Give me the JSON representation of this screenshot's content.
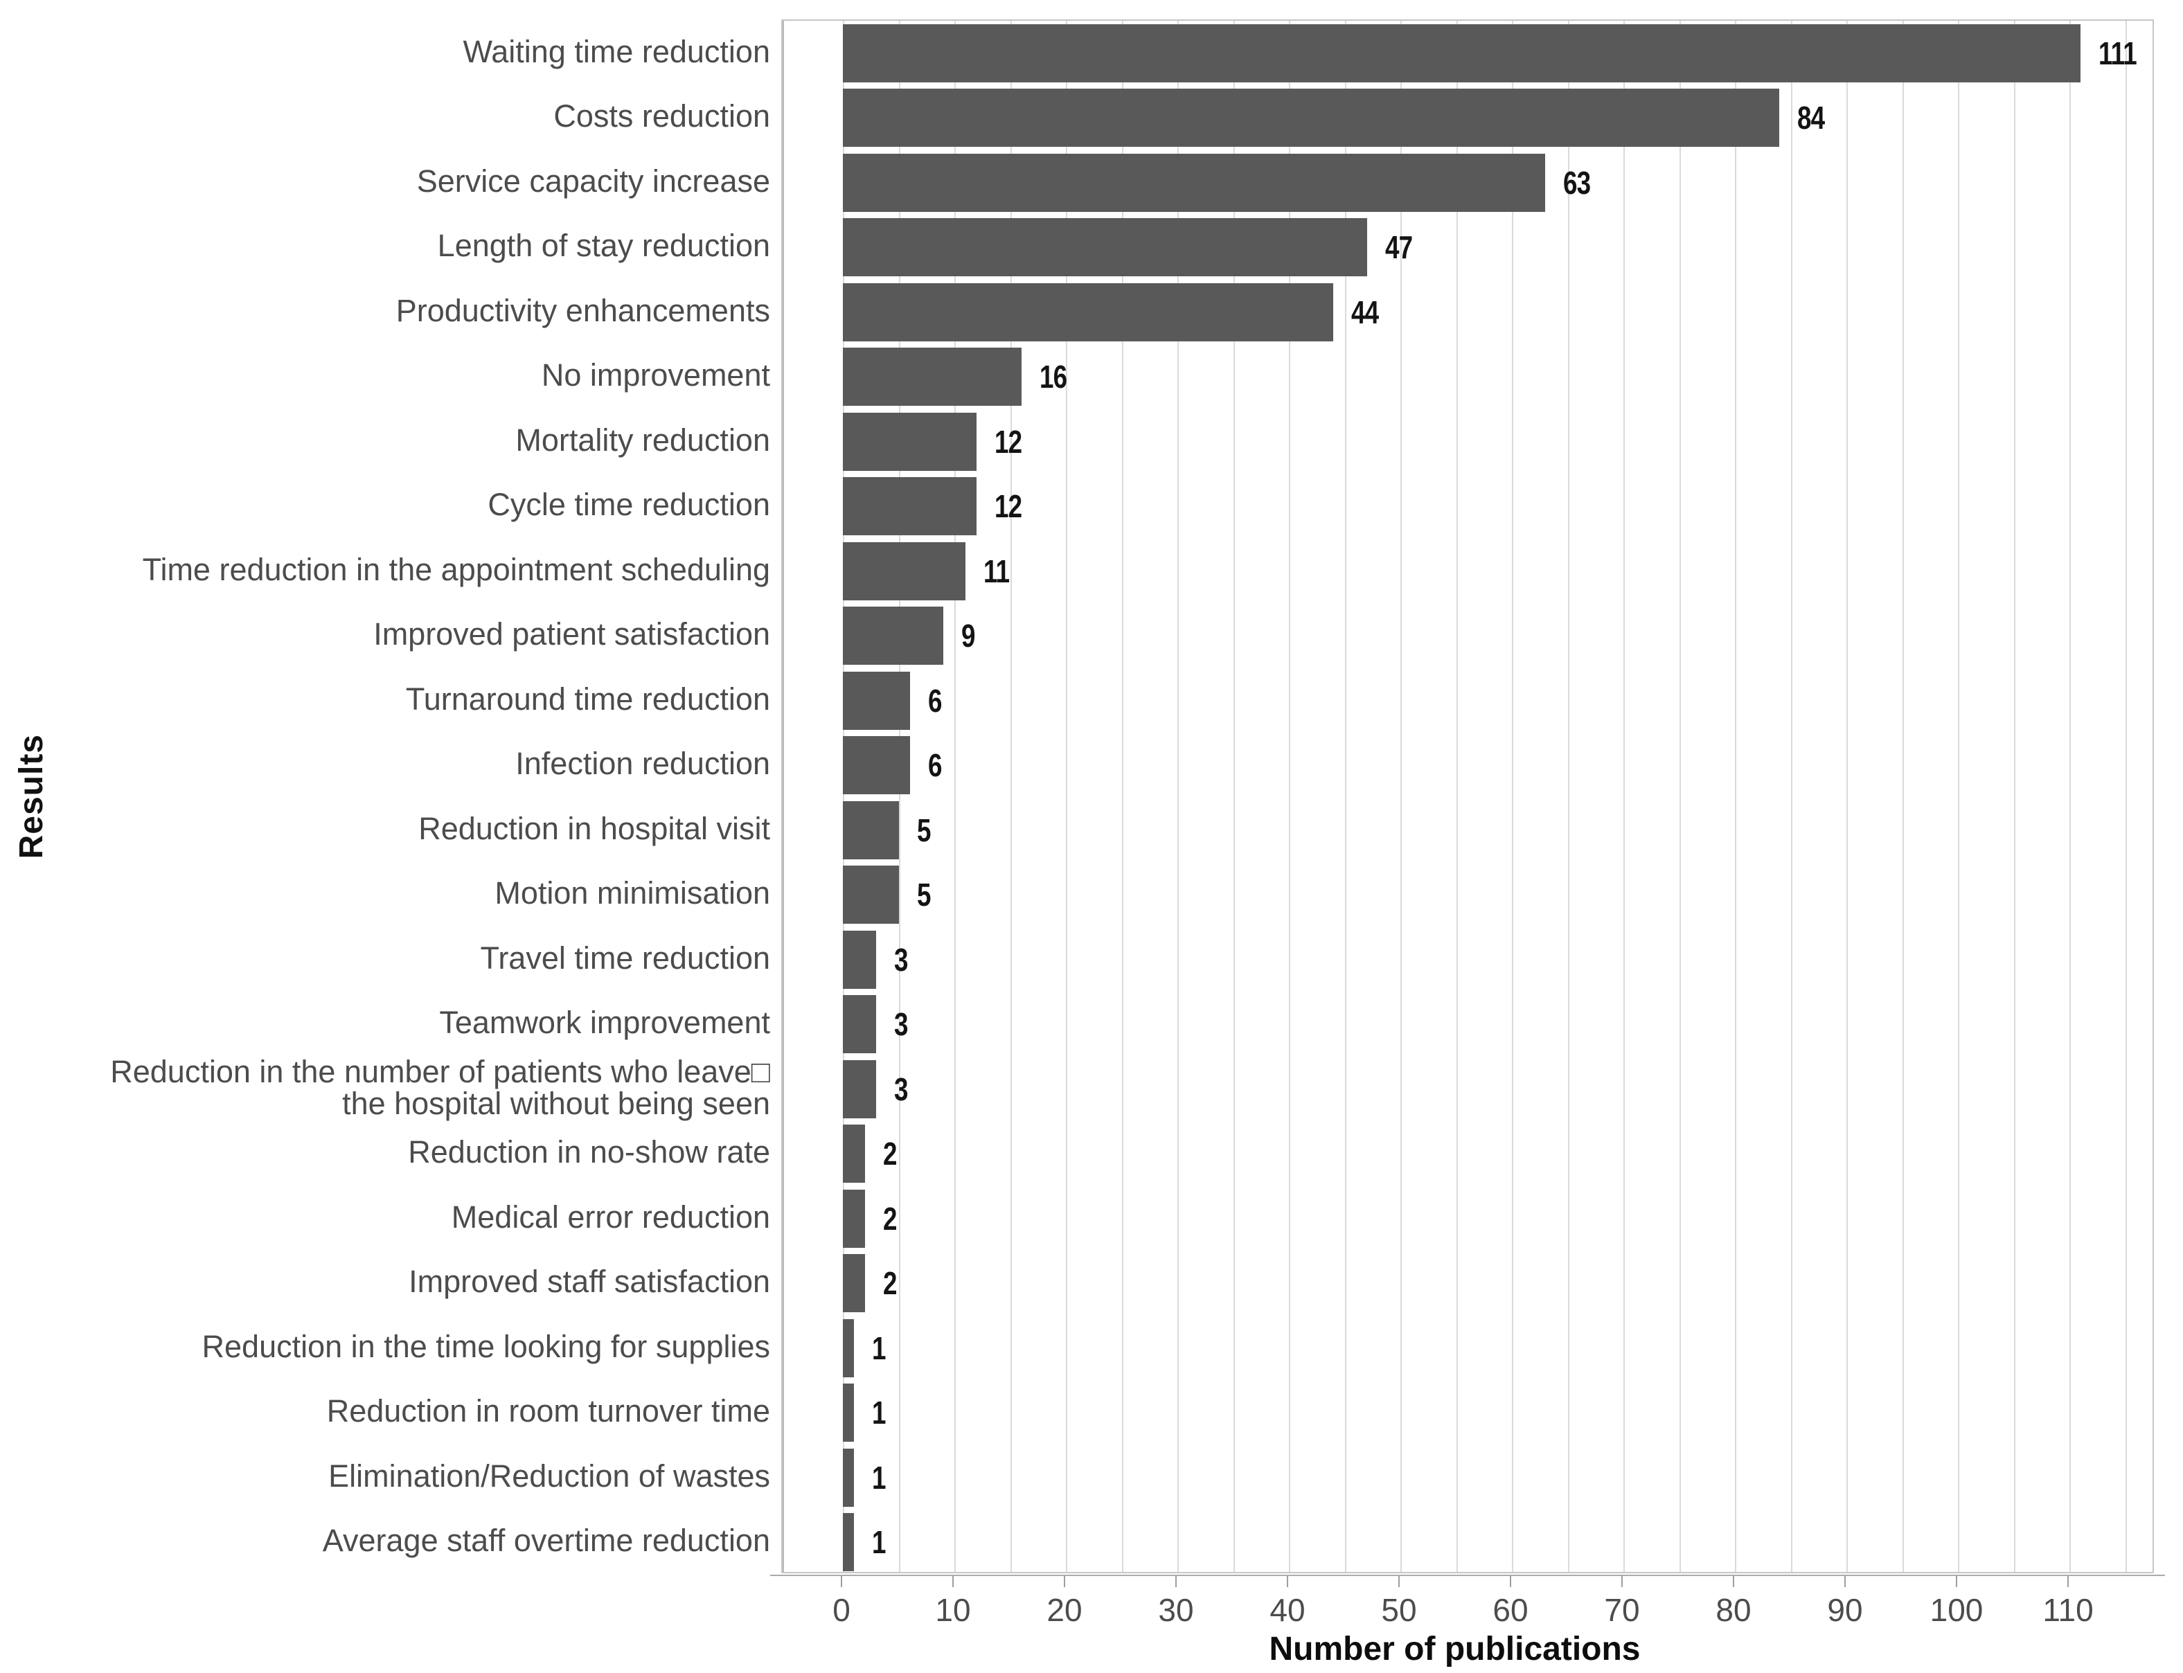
{
  "chart_data": {
    "type": "bar",
    "orientation": "horizontal",
    "title": "",
    "xlabel": "Number of publications",
    "ylabel": "Results",
    "categories": [
      "Waiting time reduction",
      "Costs reduction",
      "Service capacity increase",
      "Length of stay reduction",
      "Productivity enhancements",
      "No improvement",
      "Mortality reduction",
      "Cycle time reduction",
      "Time reduction in the appointment scheduling",
      "Improved patient satisfaction",
      "Turnaround time reduction",
      "Infection reduction",
      "Reduction in hospital visit",
      "Motion minimisation",
      "Travel time reduction",
      "Teamwork improvement",
      "Reduction in the number of patients who leave□\nthe hospital without being seen",
      "Reduction in no-show rate",
      "Medical error reduction",
      "Improved staff satisfaction",
      "Reduction in the time looking for supplies",
      "Reduction in room turnover time",
      "Elimination/Reduction of wastes",
      "Average staff overtime reduction"
    ],
    "values": [
      111,
      84,
      63,
      47,
      44,
      16,
      12,
      12,
      11,
      9,
      6,
      6,
      5,
      5,
      3,
      3,
      3,
      2,
      2,
      2,
      1,
      1,
      1,
      1
    ],
    "value_labels": [
      "111",
      "84",
      "63",
      "47",
      "44",
      "16",
      "12",
      "12",
      "11",
      "9",
      "6",
      "6",
      "5",
      "5",
      "3",
      "3",
      "3",
      "2",
      "2",
      "2",
      "1",
      "1",
      "1",
      "1"
    ],
    "xticks": [
      0,
      10,
      20,
      30,
      40,
      50,
      60,
      70,
      80,
      90,
      100,
      110
    ],
    "xlim": [
      0,
      117
    ],
    "gridline_step": 5,
    "gridline_max": 115,
    "grid_on": true,
    "legend_position": "none",
    "bar_color": "#595959",
    "grid_color": "#dadada",
    "axis_text_color": "#4c4c4c",
    "value_label_color": "#141414"
  }
}
